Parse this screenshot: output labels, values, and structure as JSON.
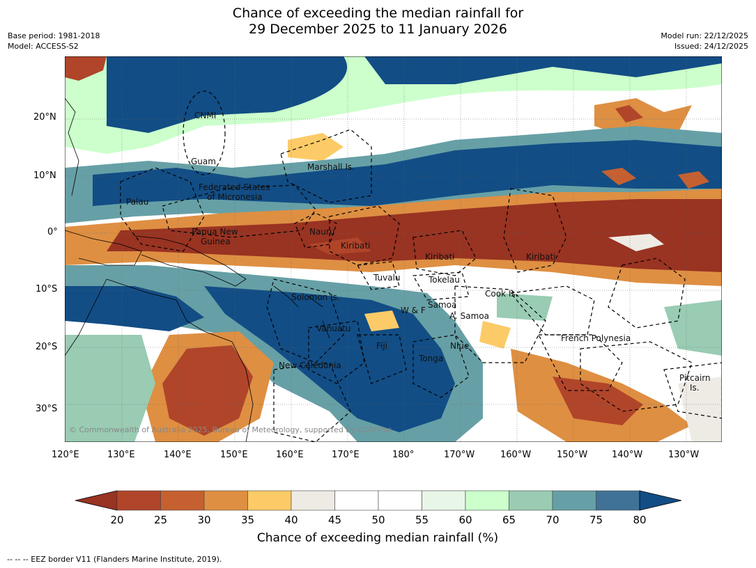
{
  "title": {
    "line1": "Chance of exceeding the median rainfall for",
    "line2": "29 December 2025 to 11 January 2026"
  },
  "meta_left": {
    "base_period": "Base period: 1981-2018",
    "model": "Model: ACCESS-S2"
  },
  "meta_right": {
    "model_run": "Model run: 22/12/2025",
    "issued": "Issued: 24/12/2025"
  },
  "lat_labels": [
    "20°N",
    "10°N",
    "0°",
    "10°S",
    "20°S",
    "30°S"
  ],
  "lon_labels": [
    "120°E",
    "130°E",
    "140°E",
    "150°E",
    "160°E",
    "170°E",
    "180°",
    "170°W",
    "160°W",
    "150°W",
    "140°W",
    "130°W"
  ],
  "regions": {
    "cnmi": "CNMI",
    "guam": "Guam",
    "marshall": "Marshall Is.",
    "fsm1": "Federated States",
    "fsm2": "of Micronesia",
    "palau": "Palau",
    "png1": "Papua New",
    "png2": "Guinea",
    "nauru": "Nauru",
    "kiribati_w": "Kiribati",
    "kiribati_c": "Kiribati",
    "kiribati_e": "Kiribati",
    "tuvalu": "Tuvalu",
    "tokelau": "Tokelau",
    "cook": "Cook Is.",
    "solomon": "Solomon Is.",
    "wf": "W & F",
    "samoa": "Samoa",
    "asamoa": "A. Samoa",
    "vanuatu": "Vanuatu",
    "fiji": "Fiji",
    "niue": "Niue",
    "tonga": "Tonga",
    "fp": "French Polynesia",
    "newcal": "New Caledonia",
    "pitcairn1": "Pitcairn",
    "pitcairn2": "Is."
  },
  "copyright": "© Commonwealth of Australia 2025, Bureau of Meteorology, supported by COSPPac",
  "colorbar": {
    "ticks": [
      "20",
      "25",
      "30",
      "35",
      "40",
      "45",
      "50",
      "55",
      "60",
      "65",
      "70",
      "75",
      "80"
    ],
    "colors": [
      "#993322",
      "#b0452a",
      "#c66030",
      "#de8f42",
      "#fccb68",
      "#eeebe5",
      "#ffffff",
      "#ffffff",
      "#e8f6e8",
      "#ccffcc",
      "#99ccb3",
      "#66a0a6",
      "#3f7296",
      "#124d85"
    ],
    "title": "Chance of exceeding median rainfall (%)"
  },
  "footnote": "--  --  -- EEZ border V11 (Flanders Marine Institute, 2019)."
}
